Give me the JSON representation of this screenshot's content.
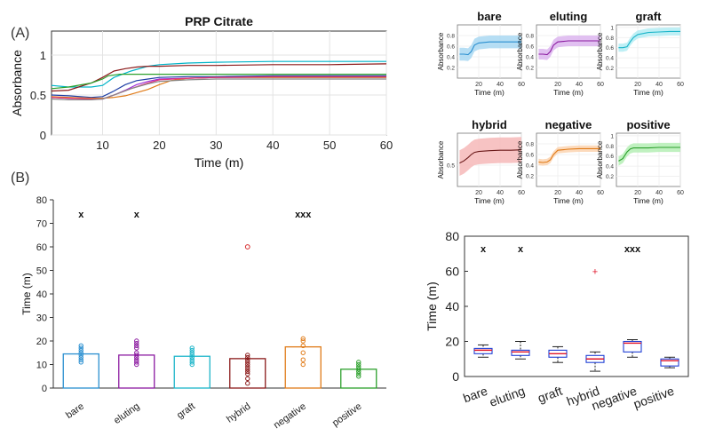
{
  "panel_labels": [
    "(A)",
    "(B)"
  ],
  "chart_data": [
    {
      "id": "main-lines",
      "type": "line",
      "title": "PRP Citrate",
      "xlabel": "Time (m)",
      "ylabel": "Absorbance",
      "xlim": [
        1,
        60
      ],
      "ylim": [
        0,
        1.3
      ],
      "xticks": [
        "10",
        "20",
        "30",
        "40",
        "50",
        "60"
      ],
      "yticks": [
        "0",
        "0.5",
        "1"
      ],
      "grid": true,
      "series": [
        {
          "color": "#00b4c8",
          "x": [
            1,
            4,
            8,
            10,
            12,
            15,
            18,
            20,
            25,
            30,
            40,
            50,
            60
          ],
          "y": [
            0.62,
            0.6,
            0.6,
            0.62,
            0.72,
            0.8,
            0.86,
            0.88,
            0.9,
            0.91,
            0.92,
            0.92,
            0.92
          ]
        },
        {
          "color": "#8b1a1a",
          "x": [
            1,
            4,
            8,
            10,
            12,
            14,
            16,
            18,
            20,
            25,
            30,
            40,
            50,
            60
          ],
          "y": [
            0.55,
            0.56,
            0.65,
            0.72,
            0.8,
            0.83,
            0.85,
            0.86,
            0.86,
            0.87,
            0.87,
            0.88,
            0.88,
            0.89
          ]
        },
        {
          "color": "#2ca02c",
          "x": [
            1,
            4,
            8,
            10,
            11,
            13,
            16,
            20,
            30,
            40,
            50,
            60
          ],
          "y": [
            0.58,
            0.6,
            0.65,
            0.7,
            0.74,
            0.76,
            0.76,
            0.76,
            0.76,
            0.76,
            0.76,
            0.76
          ]
        },
        {
          "color": "#1f3fa5",
          "x": [
            1,
            4,
            8,
            10,
            12,
            14,
            16,
            18,
            20,
            25,
            30,
            40,
            50,
            60
          ],
          "y": [
            0.5,
            0.49,
            0.47,
            0.48,
            0.55,
            0.63,
            0.68,
            0.7,
            0.72,
            0.73,
            0.73,
            0.74,
            0.74,
            0.74
          ]
        },
        {
          "color": "#9b30d9",
          "x": [
            1,
            4,
            8,
            10,
            12,
            14,
            16,
            18,
            20,
            25,
            30,
            40,
            50,
            60
          ],
          "y": [
            0.47,
            0.46,
            0.45,
            0.45,
            0.5,
            0.56,
            0.63,
            0.67,
            0.7,
            0.71,
            0.72,
            0.72,
            0.72,
            0.72
          ]
        },
        {
          "color": "#e07b18",
          "x": [
            1,
            4,
            8,
            10,
            12,
            14,
            16,
            18,
            20,
            22,
            25,
            30,
            40,
            50,
            60
          ],
          "y": [
            0.48,
            0.47,
            0.46,
            0.46,
            0.47,
            0.49,
            0.53,
            0.57,
            0.63,
            0.68,
            0.71,
            0.72,
            0.72,
            0.72,
            0.72
          ]
        },
        {
          "color": "#e0357a",
          "x": [
            1,
            4,
            8,
            10,
            12,
            15,
            18,
            20,
            25,
            30,
            40,
            50,
            60
          ],
          "y": [
            0.47,
            0.46,
            0.45,
            0.45,
            0.5,
            0.58,
            0.65,
            0.69,
            0.71,
            0.72,
            0.73,
            0.73,
            0.73
          ]
        },
        {
          "color": "#888888",
          "x": [
            1,
            4,
            8,
            10,
            12,
            15,
            18,
            20,
            25,
            30,
            40,
            50,
            60
          ],
          "y": [
            0.45,
            0.44,
            0.44,
            0.45,
            0.5,
            0.58,
            0.64,
            0.67,
            0.69,
            0.7,
            0.7,
            0.7,
            0.7
          ]
        }
      ]
    },
    {
      "id": "small-multiples",
      "type": "area",
      "xlabel": "Time (m)",
      "ylabel": "Absorbance",
      "xticks": [
        "20",
        "40",
        "60"
      ],
      "panels": [
        {
          "title": "bare",
          "color": "#2a8fd0",
          "fill": "#a9d8f2",
          "yticks": [
            "0.2",
            "0.4",
            "0.6",
            "0.8"
          ],
          "ylim": [
            0,
            1
          ],
          "x": [
            2,
            6,
            10,
            13,
            16,
            20,
            30,
            40,
            50,
            60
          ],
          "mean": [
            0.45,
            0.45,
            0.44,
            0.5,
            0.62,
            0.66,
            0.68,
            0.68,
            0.68,
            0.68
          ],
          "band": 0.12
        },
        {
          "title": "eluting",
          "color": "#8b1aa0",
          "fill": "#dcb5ef",
          "yticks": [
            "0.2",
            "0.4",
            "0.6",
            "0.8"
          ],
          "ylim": [
            0,
            1
          ],
          "x": [
            2,
            6,
            10,
            13,
            16,
            20,
            30,
            40,
            50,
            60
          ],
          "mean": [
            0.45,
            0.45,
            0.44,
            0.5,
            0.62,
            0.68,
            0.7,
            0.7,
            0.7,
            0.7
          ],
          "band": 0.1
        },
        {
          "title": "graft",
          "color": "#1bb5c9",
          "fill": "#b3ecf3",
          "yticks": [
            "0.2",
            "0.4",
            "0.6",
            "0.8",
            "1"
          ],
          "ylim": [
            0,
            1.05
          ],
          "x": [
            2,
            6,
            10,
            13,
            16,
            20,
            30,
            40,
            50,
            60
          ],
          "mean": [
            0.6,
            0.6,
            0.62,
            0.72,
            0.8,
            0.86,
            0.9,
            0.91,
            0.92,
            0.92
          ],
          "band": 0.08
        },
        {
          "title": "hybrid",
          "color": "#6b1a1a",
          "fill": "#f6b8b8",
          "yticks": [
            "0.5"
          ],
          "ylim": [
            0,
            1.25
          ],
          "x": [
            2,
            6,
            10,
            13,
            16,
            20,
            30,
            40,
            50,
            60
          ],
          "mean": [
            0.55,
            0.6,
            0.68,
            0.75,
            0.8,
            0.82,
            0.84,
            0.85,
            0.85,
            0.86
          ],
          "band": 0.3
        },
        {
          "title": "negative",
          "color": "#e07b18",
          "fill": "#fbd4b0",
          "yticks": [
            "0.2",
            "0.4",
            "0.6",
            "0.8"
          ],
          "ylim": [
            0,
            1
          ],
          "x": [
            2,
            6,
            10,
            13,
            16,
            20,
            30,
            40,
            50,
            60
          ],
          "mean": [
            0.46,
            0.45,
            0.46,
            0.5,
            0.6,
            0.68,
            0.7,
            0.71,
            0.71,
            0.71
          ],
          "band": 0.06
        },
        {
          "title": "positive",
          "color": "#2ca02c",
          "fill": "#b5efb5",
          "yticks": [
            "0.2",
            "0.4",
            "0.6",
            "0.8",
            "1"
          ],
          "ylim": [
            0,
            1.05
          ],
          "x": [
            2,
            6,
            10,
            13,
            16,
            20,
            30,
            40,
            50,
            60
          ],
          "mean": [
            0.5,
            0.55,
            0.68,
            0.74,
            0.76,
            0.76,
            0.76,
            0.77,
            0.77,
            0.77
          ],
          "band": 0.09
        }
      ]
    },
    {
      "id": "bar-dots",
      "type": "bar",
      "ylabel": "Time (m)",
      "ylim": [
        0,
        80
      ],
      "yticks": [
        "0",
        "10",
        "20",
        "30",
        "40",
        "50",
        "60",
        "70",
        "80"
      ],
      "categories": [
        "bare",
        "eluting",
        "graft",
        "hybrid",
        "negative",
        "positive"
      ],
      "values": [
        14.5,
        14,
        13.5,
        12.5,
        17.5,
        8
      ],
      "colors": [
        "#2a8fd0",
        "#8b1aa0",
        "#1bb5c9",
        "#8b1a1a",
        "#e07b18",
        "#2ca02c"
      ],
      "points": [
        [
          11,
          12,
          13,
          14,
          15,
          16,
          17,
          18
        ],
        [
          10,
          11,
          12,
          13,
          14,
          15,
          17,
          18,
          19,
          20
        ],
        [
          10,
          11,
          12,
          13,
          14,
          15,
          16,
          17
        ],
        [
          2,
          4,
          6,
          7,
          8,
          9,
          10,
          11,
          12,
          13,
          14
        ],
        [
          10,
          12,
          15,
          18,
          20,
          21
        ],
        [
          5,
          6,
          7,
          8,
          9,
          10,
          11
        ]
      ],
      "outlier": {
        "category": "hybrid",
        "value": 60
      },
      "annotations": [
        {
          "category": "bare",
          "text": "x"
        },
        {
          "category": "eluting",
          "text": "x"
        },
        {
          "category": "negative",
          "text": "xxx"
        }
      ]
    },
    {
      "id": "box-plot",
      "type": "box",
      "ylabel": "Time (m)",
      "ylim": [
        0,
        80
      ],
      "yticks": [
        "0",
        "20",
        "40",
        "60",
        "80"
      ],
      "categories": [
        "bare",
        "eluting",
        "graft",
        "hybrid",
        "negative",
        "positive"
      ],
      "boxes": [
        {
          "min": 11,
          "q1": 13,
          "median": 15,
          "q3": 16,
          "max": 18
        },
        {
          "min": 10,
          "q1": 12,
          "median": 14,
          "q3": 15,
          "max": 20
        },
        {
          "min": 8,
          "q1": 11,
          "median": 13,
          "q3": 15,
          "max": 17
        },
        {
          "min": 3,
          "q1": 8,
          "median": 10,
          "q3": 12,
          "max": 14
        },
        {
          "min": 11,
          "q1": 14,
          "median": 19,
          "q3": 20,
          "max": 21
        },
        {
          "min": 5,
          "q1": 6,
          "median": 9,
          "q3": 10,
          "max": 11
        }
      ],
      "outlier": {
        "category": "hybrid",
        "value": 60
      },
      "annotations": [
        {
          "category": "bare",
          "text": "x"
        },
        {
          "category": "eluting",
          "text": "x"
        },
        {
          "category": "negative",
          "text": "xxx"
        }
      ]
    }
  ]
}
